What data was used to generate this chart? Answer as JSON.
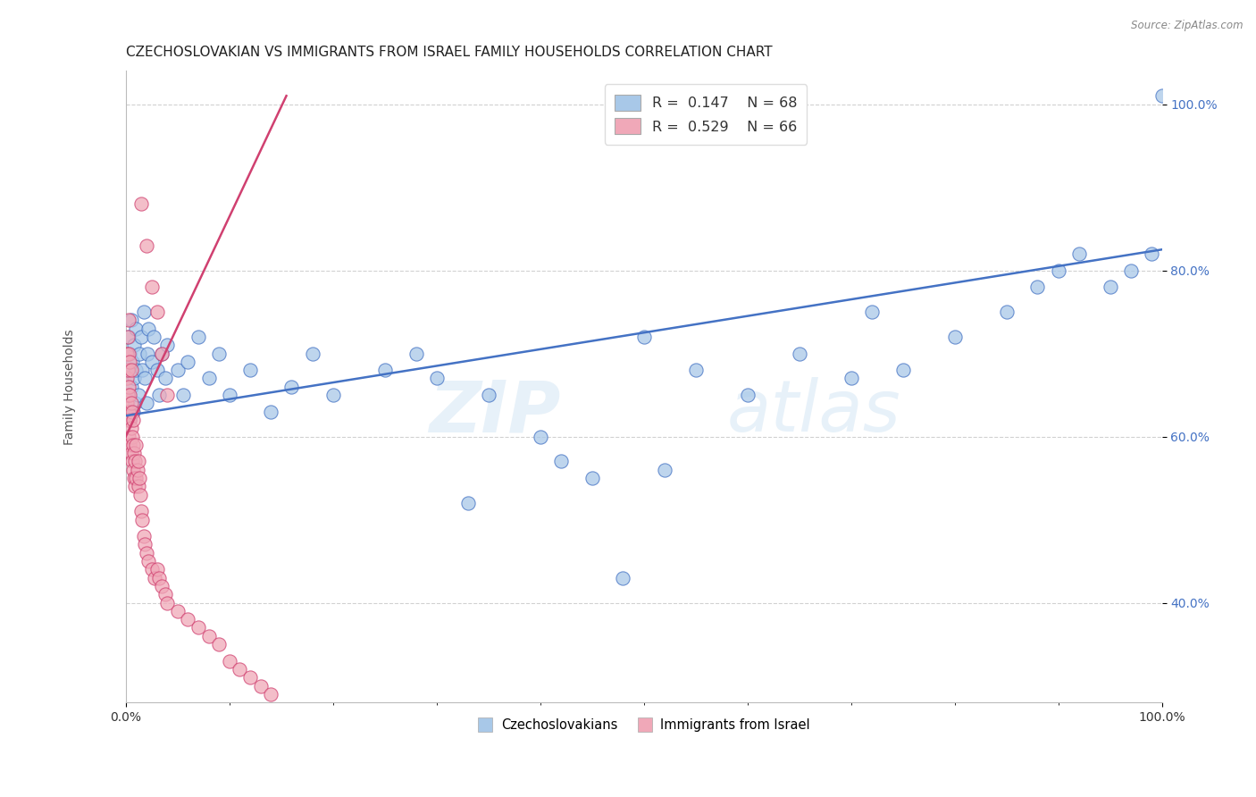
{
  "title": "CZECHOSLOVAKIAN VS IMMIGRANTS FROM ISRAEL FAMILY HOUSEHOLDS CORRELATION CHART",
  "source": "Source: ZipAtlas.com",
  "ylabel": "Family Households",
  "legend_blue_r": "R = 0.147",
  "legend_blue_n": "N = 68",
  "legend_pink_r": "R = 0.529",
  "legend_pink_n": "N = 66",
  "legend_label_blue": "Czechoslovakians",
  "legend_label_pink": "Immigrants from Israel",
  "blue_color": "#a8c8e8",
  "pink_color": "#f0a8b8",
  "blue_line_color": "#4472c4",
  "pink_line_color": "#d04070",
  "watermark_zip": "ZIP",
  "watermark_atlas": "atlas",
  "background_color": "#ffffff",
  "grid_color": "#cccccc",
  "title_fontsize": 11,
  "axis_label_fontsize": 10,
  "tick_fontsize": 10,
  "tick_color": "#4472c4",
  "xmin": 0.0,
  "xmax": 1.0,
  "ymin": 0.28,
  "ymax": 1.04,
  "blue_line_x0": 0.0,
  "blue_line_x1": 1.0,
  "blue_line_y0": 0.625,
  "blue_line_y1": 0.825,
  "pink_line_x0": 0.0,
  "pink_line_x1": 0.155,
  "pink_line_y0": 0.6,
  "pink_line_y1": 1.01,
  "blue_x": [
    0.002,
    0.003,
    0.003,
    0.004,
    0.004,
    0.005,
    0.005,
    0.006,
    0.007,
    0.008,
    0.008,
    0.009,
    0.01,
    0.01,
    0.012,
    0.013,
    0.015,
    0.016,
    0.017,
    0.018,
    0.02,
    0.021,
    0.022,
    0.025,
    0.027,
    0.03,
    0.032,
    0.035,
    0.038,
    0.04,
    0.05,
    0.055,
    0.06,
    0.07,
    0.08,
    0.09,
    0.1,
    0.12,
    0.14,
    0.16,
    0.18,
    0.2,
    0.25,
    0.28,
    0.3,
    0.35,
    0.4,
    0.42,
    0.45,
    0.5,
    0.55,
    0.6,
    0.65,
    0.7,
    0.72,
    0.75,
    0.8,
    0.85,
    0.88,
    0.9,
    0.92,
    0.95,
    0.97,
    0.99,
    1.0,
    0.48,
    0.52,
    0.33
  ],
  "blue_y": [
    0.65,
    0.68,
    0.72,
    0.62,
    0.7,
    0.66,
    0.74,
    0.69,
    0.63,
    0.71,
    0.67,
    0.64,
    0.73,
    0.68,
    0.65,
    0.7,
    0.72,
    0.68,
    0.75,
    0.67,
    0.64,
    0.7,
    0.73,
    0.69,
    0.72,
    0.68,
    0.65,
    0.7,
    0.67,
    0.71,
    0.68,
    0.65,
    0.69,
    0.72,
    0.67,
    0.7,
    0.65,
    0.68,
    0.63,
    0.66,
    0.7,
    0.65,
    0.68,
    0.7,
    0.67,
    0.65,
    0.6,
    0.57,
    0.55,
    0.72,
    0.68,
    0.65,
    0.7,
    0.67,
    0.75,
    0.68,
    0.72,
    0.75,
    0.78,
    0.8,
    0.82,
    0.78,
    0.8,
    0.82,
    1.01,
    0.43,
    0.56,
    0.52
  ],
  "pink_x": [
    0.001,
    0.001,
    0.001,
    0.002,
    0.002,
    0.002,
    0.002,
    0.003,
    0.003,
    0.003,
    0.003,
    0.003,
    0.004,
    0.004,
    0.004,
    0.004,
    0.005,
    0.005,
    0.005,
    0.005,
    0.006,
    0.006,
    0.006,
    0.007,
    0.007,
    0.007,
    0.008,
    0.008,
    0.009,
    0.009,
    0.01,
    0.01,
    0.011,
    0.012,
    0.012,
    0.013,
    0.014,
    0.015,
    0.016,
    0.017,
    0.018,
    0.02,
    0.022,
    0.025,
    0.028,
    0.03,
    0.032,
    0.035,
    0.038,
    0.04,
    0.05,
    0.06,
    0.07,
    0.08,
    0.09,
    0.1,
    0.11,
    0.12,
    0.13,
    0.14,
    0.015,
    0.02,
    0.025,
    0.03,
    0.035,
    0.04
  ],
  "pink_y": [
    0.64,
    0.67,
    0.7,
    0.62,
    0.65,
    0.68,
    0.72,
    0.6,
    0.63,
    0.66,
    0.7,
    0.74,
    0.59,
    0.62,
    0.65,
    0.69,
    0.58,
    0.61,
    0.64,
    0.68,
    0.57,
    0.6,
    0.63,
    0.56,
    0.59,
    0.62,
    0.55,
    0.58,
    0.54,
    0.57,
    0.55,
    0.59,
    0.56,
    0.54,
    0.57,
    0.55,
    0.53,
    0.51,
    0.5,
    0.48,
    0.47,
    0.46,
    0.45,
    0.44,
    0.43,
    0.44,
    0.43,
    0.42,
    0.41,
    0.4,
    0.39,
    0.38,
    0.37,
    0.36,
    0.35,
    0.33,
    0.32,
    0.31,
    0.3,
    0.29,
    0.88,
    0.83,
    0.78,
    0.75,
    0.7,
    0.65
  ]
}
